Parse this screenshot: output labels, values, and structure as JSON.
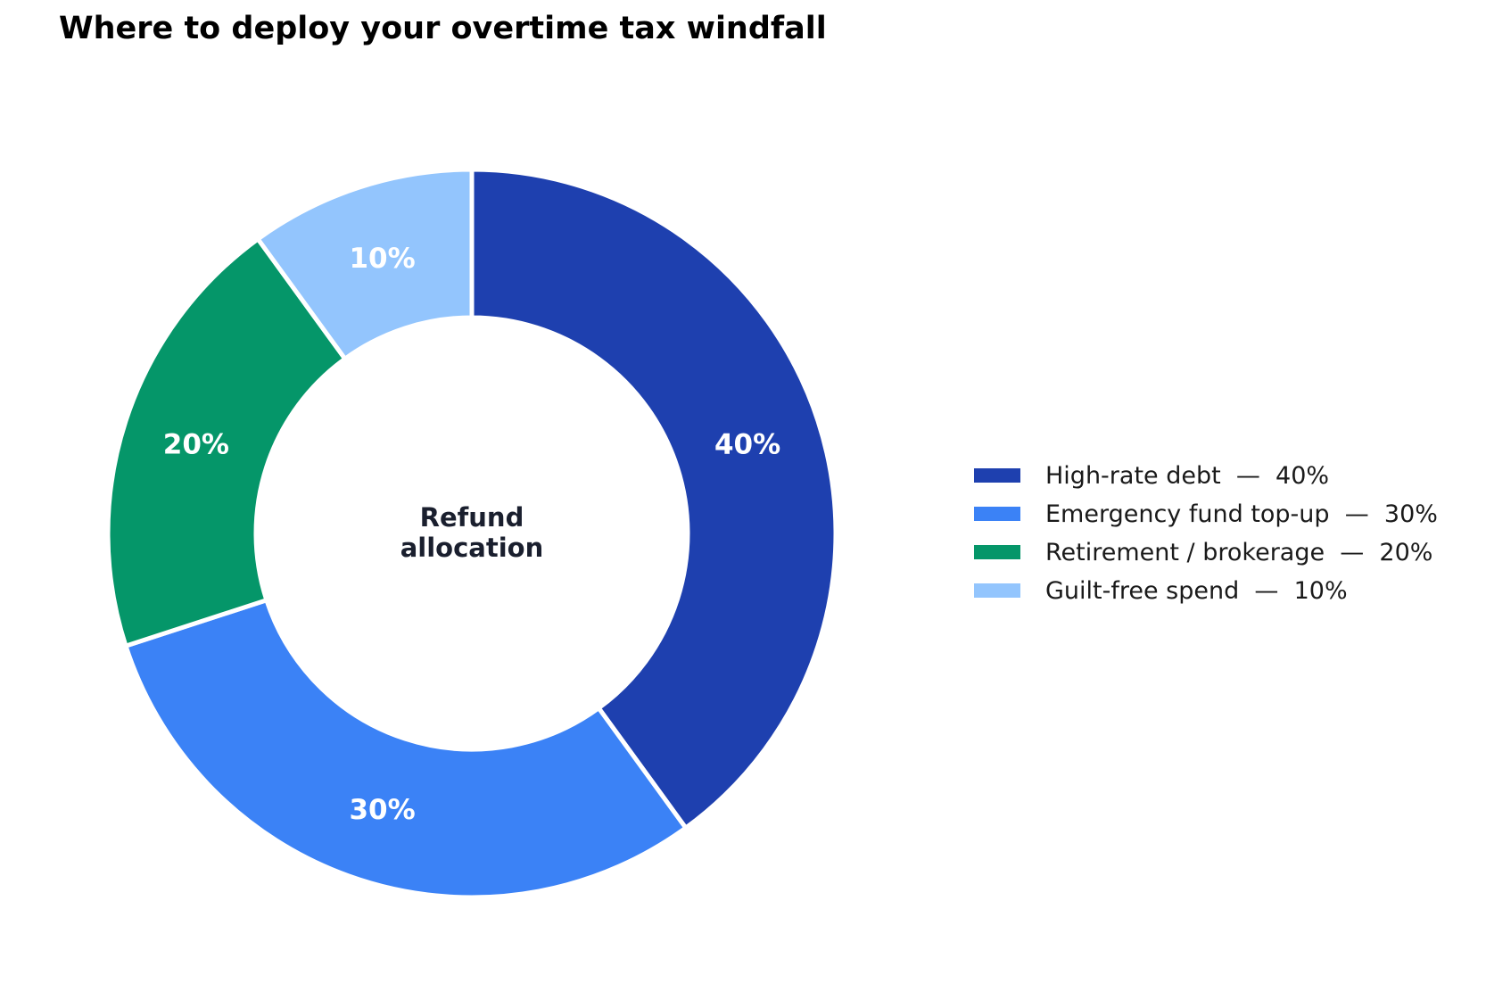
{
  "chart_data": {
    "type": "pie",
    "style": "donut",
    "title": "Where to deploy your overtime tax windfall",
    "center_label": [
      "Refund",
      "allocation"
    ],
    "unit": "%",
    "start_angle_deg": 90,
    "direction": "clockwise",
    "legend_position": "right",
    "slices": [
      {
        "label": "High-rate debt",
        "value": 40,
        "color": "#1e40af",
        "data_label": "40%",
        "legend_text": "High-rate debt  —  40%"
      },
      {
        "label": "Emergency fund top-up",
        "value": 30,
        "color": "#3b82f6",
        "data_label": "30%",
        "legend_text": "Emergency fund top-up  —  30%"
      },
      {
        "label": "Retirement / brokerage",
        "value": 20,
        "color": "#059669",
        "data_label": "20%",
        "legend_text": "Retirement / brokerage  —  20%"
      },
      {
        "label": "Guilt-free spend",
        "value": 10,
        "color": "#93c5fd",
        "data_label": "10%",
        "legend_text": "Guilt-free spend  —  10%"
      }
    ]
  }
}
